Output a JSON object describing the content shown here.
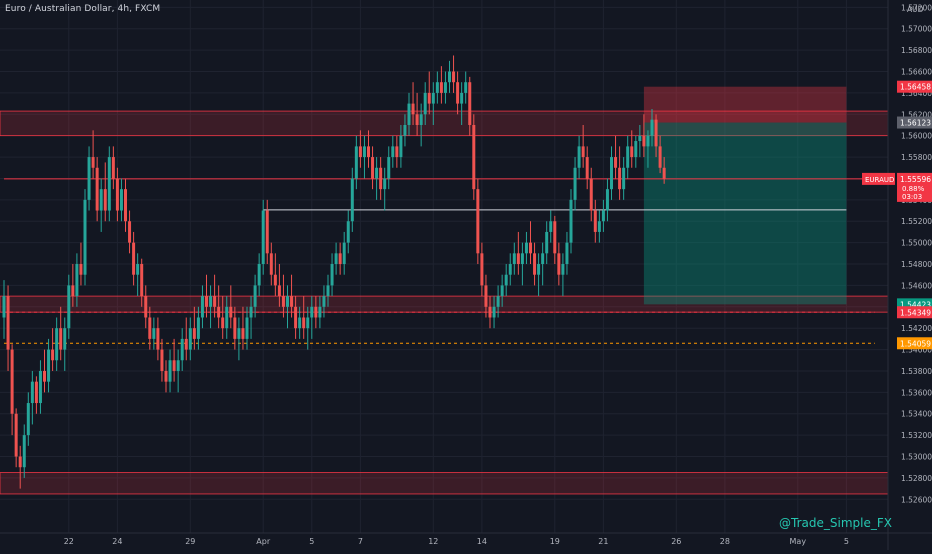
{
  "chart_data": {
    "type": "candlestick",
    "title": "Euro / Australian Dollar, 4h, FXCM",
    "symbol": "EURAUD",
    "currency_label": "AUD",
    "watermark": "@Trade_Simple_FX",
    "ylim": [
      1.525,
      1.5725
    ],
    "y_ticks": [
      "1.57200",
      "1.57000",
      "1.56800",
      "1.56600",
      "1.56400",
      "1.56200",
      "1.56000",
      "1.55800",
      "1.55600",
      "1.55400",
      "1.55200",
      "1.55000",
      "1.54800",
      "1.54600",
      "1.54400",
      "1.54200",
      "1.54000",
      "1.53800",
      "1.53600",
      "1.53400",
      "1.53200",
      "1.53000",
      "1.52800",
      "1.52600"
    ],
    "x_ticks": [
      {
        "label": "22",
        "bar": 16
      },
      {
        "label": "24",
        "bar": 28
      },
      {
        "label": "29",
        "bar": 46
      },
      {
        "label": "Apr",
        "bar": 64
      },
      {
        "label": "5",
        "bar": 76
      },
      {
        "label": "7",
        "bar": 88
      },
      {
        "label": "12",
        "bar": 106
      },
      {
        "label": "14",
        "bar": 118
      },
      {
        "label": "19",
        "bar": 136
      },
      {
        "label": "21",
        "bar": 148
      },
      {
        "label": "26",
        "bar": 166
      },
      {
        "label": "28",
        "bar": 178
      },
      {
        "label": "May",
        "bar": 196
      },
      {
        "label": "5",
        "bar": 208
      }
    ],
    "price_labels": [
      {
        "text": "1.56458",
        "value": 1.56458,
        "color": "#f23645"
      },
      {
        "text": "1.56123",
        "value": 1.56123,
        "color": "#5d606b"
      },
      {
        "text": "1.54423",
        "value": 1.54423,
        "color": "#089981"
      },
      {
        "text": "1.54349",
        "value": 1.54349,
        "color": "#f23645"
      },
      {
        "text": "1.54059",
        "value": 1.54059,
        "color": "#ff9800"
      }
    ],
    "current_price": {
      "symbol": "EURAUD",
      "value": 1.55596,
      "text": "1.55596",
      "change": "0.88%",
      "countdown": "03:03"
    },
    "zones": [
      {
        "name": "resistance-zone",
        "top": 1.5623,
        "bottom": 1.56
      },
      {
        "name": "support-zone",
        "top": 1.545,
        "bottom": 1.5435
      },
      {
        "name": "low-zone",
        "top": 1.5285,
        "bottom": 1.5265
      }
    ],
    "horizontal_lines": [
      {
        "name": "entry-level-line",
        "value": 1.55306,
        "from_bar": 64,
        "to_bar": 208,
        "color": "#d1d4dc"
      },
      {
        "name": "red-dashed-line",
        "value": 1.54349,
        "from_bar": 0,
        "to_bar": 215,
        "color": "#f23645",
        "dashed": true
      },
      {
        "name": "orange-dashed-line",
        "value": 1.54059,
        "from_bar": 0,
        "to_bar": 215,
        "color": "#ff9800",
        "dashed": true
      },
      {
        "name": "price-line",
        "value": 1.55596,
        "from_bar": 0,
        "to_bar": 215,
        "color": "#f23645",
        "dashed": false
      }
    ],
    "short_position": {
      "from_bar": 158,
      "to_bar": 208,
      "stop": 1.56458,
      "entry": 1.56123,
      "target": 1.54423
    },
    "candles": [
      [
        1.543,
        1.5465,
        1.541,
        1.545
      ],
      [
        1.545,
        1.546,
        1.538,
        1.54
      ],
      [
        1.54,
        1.5405,
        1.532,
        1.534
      ],
      [
        1.534,
        1.5345,
        1.529,
        1.53
      ],
      [
        1.53,
        1.531,
        1.527,
        1.529
      ],
      [
        1.529,
        1.533,
        1.528,
        1.532
      ],
      [
        1.532,
        1.536,
        1.531,
        1.535
      ],
      [
        1.535,
        1.538,
        1.533,
        1.537
      ],
      [
        1.537,
        1.5375,
        1.534,
        1.535
      ],
      [
        1.535,
        1.539,
        1.534,
        1.538
      ],
      [
        1.538,
        1.54,
        1.536,
        1.537
      ],
      [
        1.537,
        1.541,
        1.536,
        1.54
      ],
      [
        1.54,
        1.542,
        1.538,
        1.539
      ],
      [
        1.539,
        1.543,
        1.538,
        1.542
      ],
      [
        1.542,
        1.544,
        1.539,
        1.54
      ],
      [
        1.54,
        1.543,
        1.538,
        1.542
      ],
      [
        1.542,
        1.547,
        1.541,
        1.546
      ],
      [
        1.546,
        1.548,
        1.544,
        1.545
      ],
      [
        1.545,
        1.549,
        1.544,
        1.548
      ],
      [
        1.548,
        1.55,
        1.546,
        1.547
      ],
      [
        1.547,
        1.555,
        1.546,
        1.554
      ],
      [
        1.554,
        1.559,
        1.553,
        1.558
      ],
      [
        1.558,
        1.5605,
        1.556,
        1.557
      ],
      [
        1.557,
        1.558,
        1.552,
        1.553
      ],
      [
        1.553,
        1.556,
        1.551,
        1.555
      ],
      [
        1.555,
        1.5575,
        1.552,
        1.553
      ],
      [
        1.553,
        1.559,
        1.552,
        1.558
      ],
      [
        1.558,
        1.559,
        1.555,
        1.556
      ],
      [
        1.556,
        1.557,
        1.552,
        1.553
      ],
      [
        1.553,
        1.556,
        1.552,
        1.555
      ],
      [
        1.555,
        1.556,
        1.551,
        1.552
      ],
      [
        1.552,
        1.553,
        1.549,
        1.55
      ],
      [
        1.55,
        1.551,
        1.546,
        1.547
      ],
      [
        1.547,
        1.549,
        1.545,
        1.548
      ],
      [
        1.548,
        1.5485,
        1.544,
        1.545
      ],
      [
        1.545,
        1.546,
        1.542,
        1.543
      ],
      [
        1.543,
        1.544,
        1.54,
        1.541
      ],
      [
        1.541,
        1.543,
        1.54,
        1.542
      ],
      [
        1.542,
        1.543,
        1.539,
        1.54
      ],
      [
        1.54,
        1.541,
        1.537,
        1.538
      ],
      [
        1.538,
        1.539,
        1.536,
        1.537
      ],
      [
        1.537,
        1.54,
        1.536,
        1.539
      ],
      [
        1.539,
        1.541,
        1.537,
        1.538
      ],
      [
        1.538,
        1.54,
        1.536,
        1.539
      ],
      [
        1.539,
        1.542,
        1.538,
        1.541
      ],
      [
        1.541,
        1.543,
        1.539,
        1.54
      ],
      [
        1.54,
        1.543,
        1.539,
        1.542
      ],
      [
        1.542,
        1.544,
        1.54,
        1.541
      ],
      [
        1.541,
        1.544,
        1.54,
        1.543
      ],
      [
        1.543,
        1.546,
        1.542,
        1.545
      ],
      [
        1.545,
        1.547,
        1.543,
        1.544
      ],
      [
        1.544,
        1.546,
        1.542,
        1.545
      ],
      [
        1.545,
        1.547,
        1.543,
        1.544
      ],
      [
        1.544,
        1.546,
        1.542,
        1.543
      ],
      [
        1.543,
        1.545,
        1.541,
        1.542
      ],
      [
        1.542,
        1.545,
        1.541,
        1.544
      ],
      [
        1.544,
        1.546,
        1.542,
        1.543
      ],
      [
        1.543,
        1.544,
        1.54,
        1.541
      ],
      [
        1.541,
        1.543,
        1.539,
        1.542
      ],
      [
        1.542,
        1.544,
        1.54,
        1.541
      ],
      [
        1.541,
        1.544,
        1.54,
        1.543
      ],
      [
        1.543,
        1.545,
        1.541,
        1.544
      ],
      [
        1.544,
        1.547,
        1.543,
        1.546
      ],
      [
        1.546,
        1.549,
        1.545,
        1.548
      ],
      [
        1.548,
        1.554,
        1.547,
        1.553
      ],
      [
        1.553,
        1.554,
        1.548,
        1.549
      ],
      [
        1.549,
        1.55,
        1.546,
        1.547
      ],
      [
        1.547,
        1.549,
        1.545,
        1.546
      ],
      [
        1.546,
        1.548,
        1.544,
        1.545
      ],
      [
        1.545,
        1.547,
        1.543,
        1.544
      ],
      [
        1.544,
        1.546,
        1.542,
        1.545
      ],
      [
        1.545,
        1.547,
        1.543,
        1.544
      ],
      [
        1.544,
        1.545,
        1.541,
        1.542
      ],
      [
        1.542,
        1.544,
        1.541,
        1.543
      ],
      [
        1.543,
        1.545,
        1.541,
        1.542
      ],
      [
        1.542,
        1.544,
        1.54,
        1.543
      ],
      [
        1.543,
        1.545,
        1.541,
        1.544
      ],
      [
        1.544,
        1.545,
        1.542,
        1.543
      ],
      [
        1.543,
        1.545,
        1.542,
        1.544
      ],
      [
        1.544,
        1.546,
        1.543,
        1.545
      ],
      [
        1.545,
        1.547,
        1.544,
        1.546
      ],
      [
        1.546,
        1.549,
        1.545,
        1.548
      ],
      [
        1.548,
        1.55,
        1.547,
        1.549
      ],
      [
        1.549,
        1.55,
        1.547,
        1.548
      ],
      [
        1.548,
        1.551,
        1.547,
        1.55
      ],
      [
        1.55,
        1.553,
        1.549,
        1.552
      ],
      [
        1.552,
        1.557,
        1.551,
        1.556
      ],
      [
        1.556,
        1.56,
        1.555,
        1.559
      ],
      [
        1.559,
        1.5605,
        1.557,
        1.558
      ],
      [
        1.558,
        1.56,
        1.556,
        1.559
      ],
      [
        1.559,
        1.5605,
        1.557,
        1.558
      ],
      [
        1.558,
        1.559,
        1.555,
        1.556
      ],
      [
        1.556,
        1.558,
        1.554,
        1.557
      ],
      [
        1.557,
        1.558,
        1.554,
        1.555
      ],
      [
        1.555,
        1.557,
        1.553,
        1.556
      ],
      [
        1.556,
        1.559,
        1.555,
        1.558
      ],
      [
        1.558,
        1.56,
        1.557,
        1.559
      ],
      [
        1.559,
        1.56,
        1.557,
        1.558
      ],
      [
        1.558,
        1.561,
        1.557,
        1.56
      ],
      [
        1.56,
        1.562,
        1.559,
        1.561
      ],
      [
        1.561,
        1.564,
        1.56,
        1.563
      ],
      [
        1.563,
        1.565,
        1.561,
        1.562
      ],
      [
        1.562,
        1.564,
        1.56,
        1.561
      ],
      [
        1.561,
        1.563,
        1.559,
        1.562
      ],
      [
        1.562,
        1.565,
        1.561,
        1.564
      ],
      [
        1.564,
        1.566,
        1.562,
        1.563
      ],
      [
        1.563,
        1.565,
        1.561,
        1.564
      ],
      [
        1.564,
        1.566,
        1.563,
        1.565
      ],
      [
        1.565,
        1.5665,
        1.563,
        1.564
      ],
      [
        1.564,
        1.566,
        1.563,
        1.565
      ],
      [
        1.565,
        1.567,
        1.564,
        1.566
      ],
      [
        1.566,
        1.5675,
        1.564,
        1.565
      ],
      [
        1.565,
        1.566,
        1.562,
        1.563
      ],
      [
        1.563,
        1.565,
        1.561,
        1.564
      ],
      [
        1.564,
        1.566,
        1.563,
        1.565
      ],
      [
        1.565,
        1.5655,
        1.56,
        1.561
      ],
      [
        1.561,
        1.562,
        1.554,
        1.555
      ],
      [
        1.555,
        1.556,
        1.548,
        1.549
      ],
      [
        1.549,
        1.55,
        1.545,
        1.546
      ],
      [
        1.546,
        1.547,
        1.543,
        1.544
      ],
      [
        1.544,
        1.545,
        1.542,
        1.543
      ],
      [
        1.543,
        1.545,
        1.542,
        1.544
      ],
      [
        1.544,
        1.546,
        1.543,
        1.545
      ],
      [
        1.545,
        1.547,
        1.544,
        1.546
      ],
      [
        1.546,
        1.548,
        1.545,
        1.547
      ],
      [
        1.547,
        1.549,
        1.546,
        1.548
      ],
      [
        1.548,
        1.55,
        1.547,
        1.549
      ],
      [
        1.549,
        1.551,
        1.547,
        1.548
      ],
      [
        1.548,
        1.55,
        1.546,
        1.549
      ],
      [
        1.549,
        1.551,
        1.548,
        1.55
      ],
      [
        1.55,
        1.552,
        1.548,
        1.549
      ],
      [
        1.549,
        1.55,
        1.546,
        1.547
      ],
      [
        1.547,
        1.549,
        1.545,
        1.548
      ],
      [
        1.548,
        1.55,
        1.546,
        1.549
      ],
      [
        1.549,
        1.552,
        1.548,
        1.551
      ],
      [
        1.551,
        1.553,
        1.55,
        1.552
      ],
      [
        1.552,
        1.5525,
        1.548,
        1.549
      ],
      [
        1.549,
        1.55,
        1.546,
        1.547
      ],
      [
        1.547,
        1.549,
        1.545,
        1.548
      ],
      [
        1.548,
        1.551,
        1.547,
        1.55
      ],
      [
        1.55,
        1.555,
        1.549,
        1.554
      ],
      [
        1.554,
        1.558,
        1.553,
        1.557
      ],
      [
        1.557,
        1.56,
        1.556,
        1.559
      ],
      [
        1.559,
        1.561,
        1.557,
        1.558
      ],
      [
        1.558,
        1.559,
        1.555,
        1.556
      ],
      [
        1.556,
        1.557,
        1.552,
        1.553
      ],
      [
        1.553,
        1.554,
        1.55,
        1.551
      ],
      [
        1.551,
        1.553,
        1.55,
        1.552
      ],
      [
        1.552,
        1.554,
        1.551,
        1.553
      ],
      [
        1.553,
        1.556,
        1.552,
        1.555
      ],
      [
        1.555,
        1.559,
        1.554,
        1.558
      ],
      [
        1.558,
        1.56,
        1.556,
        1.557
      ],
      [
        1.557,
        1.559,
        1.554,
        1.555
      ],
      [
        1.555,
        1.558,
        1.554,
        1.557
      ],
      [
        1.557,
        1.56,
        1.556,
        1.559
      ],
      [
        1.559,
        1.5605,
        1.557,
        1.558
      ],
      [
        1.558,
        1.56,
        1.557,
        1.5595
      ],
      [
        1.5595,
        1.561,
        1.558,
        1.56
      ],
      [
        1.56,
        1.562,
        1.558,
        1.559
      ],
      [
        1.559,
        1.5605,
        1.557,
        1.56
      ],
      [
        1.56,
        1.5625,
        1.559,
        1.5615
      ],
      [
        1.5615,
        1.562,
        1.558,
        1.559
      ],
      [
        1.559,
        1.56,
        1.5565,
        1.557
      ],
      [
        1.557,
        1.558,
        1.5555,
        1.556
      ]
    ]
  }
}
